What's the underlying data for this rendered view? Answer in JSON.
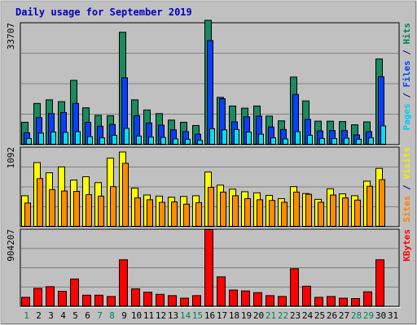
{
  "chart_data": {
    "type": "bar",
    "title": "Daily usage for September 2019",
    "days": [
      "1",
      "2",
      "3",
      "4",
      "5",
      "6",
      "7",
      "8",
      "9",
      "10",
      "11",
      "12",
      "13",
      "14",
      "15",
      "16",
      "17",
      "18",
      "19",
      "20",
      "21",
      "22",
      "23",
      "24",
      "25",
      "26",
      "27",
      "28",
      "29",
      "30",
      "31"
    ],
    "weekend_days": [
      "1",
      "7",
      "8",
      "14",
      "15",
      "21",
      "22",
      "28",
      "29"
    ],
    "panels": [
      {
        "id": "top",
        "ymax": 33707,
        "ymax_label": "33707",
        "legend": [
          {
            "text": "Pages",
            "color": "#00c8f0"
          },
          {
            "text": " / ",
            "color": "#000080"
          },
          {
            "text": "Files",
            "color": "#0040ff"
          },
          {
            "text": " / ",
            "color": "#000080"
          },
          {
            "text": "Hits",
            "color": "#00805a"
          }
        ],
        "series": [
          {
            "name": "Hits",
            "color": "#1a8a5f",
            "values": [
              6300,
              11500,
              12500,
              12000,
              17900,
              10300,
              8200,
              8100,
              31200,
              12500,
              9700,
              8700,
              6900,
              6300,
              5400,
              34500,
              13200,
              10800,
              10200,
              10800,
              8000,
              6700,
              18800,
              12200,
              6600,
              6600,
              6500,
              5600,
              6400,
              23800,
              0
            ]
          },
          {
            "name": "Files",
            "color": "#0840ff",
            "values": [
              3400,
              7600,
              8700,
              9000,
              11500,
              6300,
              5200,
              5700,
              18600,
              8100,
              6100,
              5500,
              4200,
              3700,
              3000,
              28900,
              12800,
              6400,
              7800,
              8000,
              5000,
              4300,
              14000,
              7100,
              3900,
              4000,
              4000,
              2800,
              3700,
              18900,
              0
            ]
          },
          {
            "name": "Pages",
            "color": "#00e0f0",
            "values": [
              1800,
              3300,
              3600,
              3500,
              3700,
              2300,
              2000,
              2700,
              4600,
              2500,
              2200,
              2100,
              1700,
              1600,
              1300,
              4500,
              4200,
              4300,
              3600,
              3000,
              2000,
              1700,
              3700,
              2700,
              1800,
              1800,
              1900,
              1600,
              2000,
              5300,
              0
            ]
          }
        ]
      },
      {
        "id": "middle",
        "ymax": 1092,
        "ymax_label": "1092",
        "legend": [
          {
            "text": "Sites",
            "color": "#ff8000"
          },
          {
            "text": " / ",
            "color": "#000080"
          },
          {
            "text": "Visits",
            "color": "#f0f000"
          }
        ],
        "series": [
          {
            "name": "Visits",
            "color": "#ffff00",
            "values": [
              430,
              885,
              745,
              825,
              645,
              690,
              610,
              945,
              1030,
              535,
              440,
              425,
              410,
              420,
              430,
              755,
              575,
              520,
              485,
              470,
              435,
              390,
              555,
              460,
              380,
              525,
              455,
              430,
              630,
              805,
              0
            ]
          },
          {
            "name": "Sites",
            "color": "#ff8c00",
            "values": [
              330,
              665,
              515,
              495,
              490,
              445,
              425,
              555,
              875,
              400,
              375,
              340,
              345,
              315,
              335,
              545,
              480,
              430,
              390,
              375,
              365,
              340,
              480,
              450,
              340,
              440,
              400,
              370,
              560,
              650,
              0
            ]
          }
        ]
      },
      {
        "id": "bottom",
        "ymax": 904207,
        "ymax_label": "904207",
        "legend": [
          {
            "text": "KBytes",
            "color": "#ff0000"
          }
        ],
        "series": [
          {
            "name": "KBytes",
            "color": "#ff0000",
            "values": [
              110000,
              215000,
              235000,
              180000,
              325000,
              135000,
              135000,
              120000,
              550000,
              210000,
              170000,
              145000,
              130000,
              100000,
              130000,
              904207,
              350000,
              195000,
              185000,
              165000,
              130000,
              120000,
              445000,
              240000,
              110000,
              120000,
              100000,
              95000,
              175000,
              550000,
              0
            ]
          }
        ]
      }
    ]
  }
}
